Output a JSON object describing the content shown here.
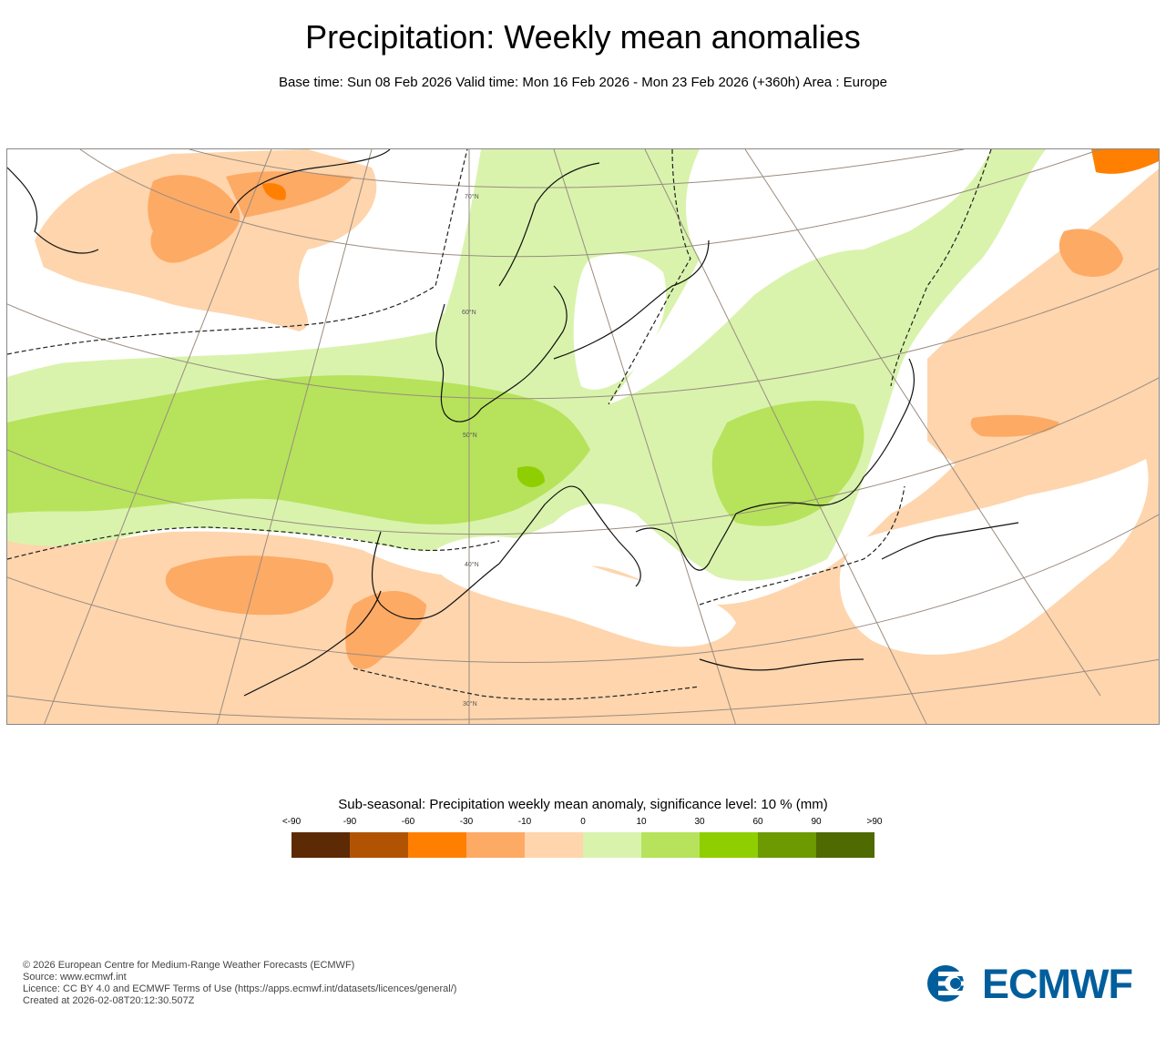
{
  "header": {
    "title": "Precipitation: Weekly mean anomalies",
    "subtitle": "Base time: Sun 08 Feb 2026 Valid time: Mon 16 Feb 2026 - Mon 23 Feb 2026 (+360h) Area : Europe"
  },
  "map": {
    "region": "Europe",
    "lat_labels": [
      "70°N",
      "60°N",
      "50°N",
      "40°N",
      "30°N"
    ],
    "colors": {
      "dry_strong": "#fdaa65",
      "dry_moderate": "#ff8000",
      "dry_weak": "#fed5ad",
      "wet_weak": "#d9f3ad",
      "wet_moderate": "#b6e35b",
      "wet_strong": "#8fce00",
      "coast": "#111111",
      "graticule": "#9a8c80"
    }
  },
  "legend": {
    "title": "Sub-seasonal: Precipitation weekly mean anomaly, significance level: 10 % (mm)",
    "ticks": [
      "<-90",
      "-90",
      "-60",
      "-30",
      "-10",
      "0",
      "10",
      "30",
      "60",
      "90",
      ">90"
    ],
    "colors": [
      "#5c2a05",
      "#b05404",
      "#ff8000",
      "#fdaa65",
      "#fed5ad",
      "#d9f3ad",
      "#b6e35b",
      "#8fce00",
      "#6c9a00",
      "#4f6a00"
    ]
  },
  "footer": {
    "lines": [
      "© 2026 European Centre for Medium-Range Weather Forecasts (ECMWF)",
      "Source: www.ecmwf.int",
      "Licence: CC BY 4.0 and ECMWF Terms of Use (https://apps.ecmwf.int/datasets/licences/general/)",
      "Created at 2026-02-08T20:12:30.507Z"
    ]
  },
  "logo": {
    "text": "ECMWF",
    "color": "#005e9c"
  }
}
